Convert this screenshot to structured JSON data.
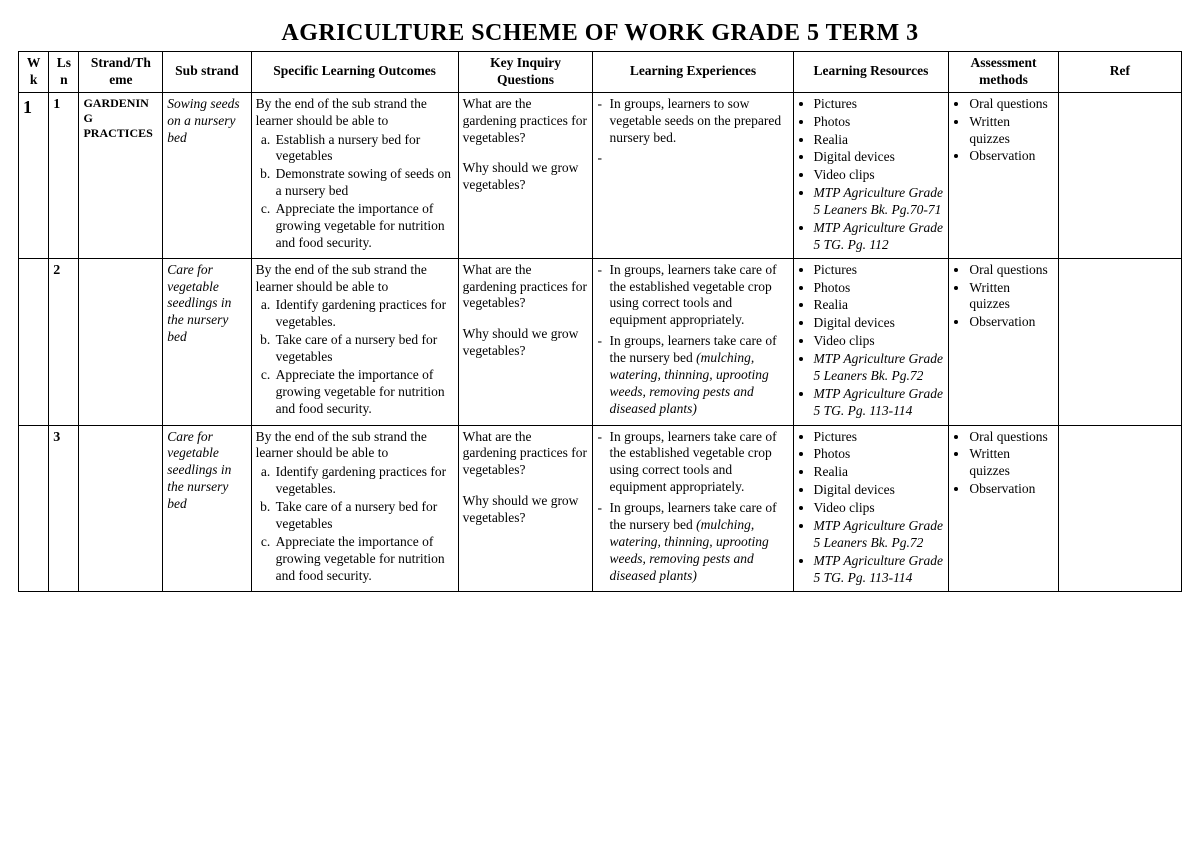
{
  "title": "AGRICULTURE SCHEME OF WORK GRADE 5 TERM 3",
  "headers": {
    "wk": "W k",
    "lsn": "Ls n",
    "strand": "Strand/Th eme",
    "substrand": "Sub strand",
    "slo": "Specific Learning Outcomes",
    "kiq": "Key Inquiry Questions",
    "lex": "Learning Experiences",
    "res": "Learning Resources",
    "asm": "Assessment methods",
    "ref": "Ref"
  },
  "rows": [
    {
      "wk": "1",
      "lsn": "1",
      "strand": "GARDENIN G PRACTICES",
      "substrand": "Sowing seeds on a nursery bed",
      "slo_intro": "By the end of the sub strand the learner should be able to",
      "slo_items": [
        "Establish a nursery bed for vegetables",
        "Demonstrate sowing of seeds on a nursery bed",
        "Appreciate the importance of growing vegetable for nutrition and food security."
      ],
      "kiq": [
        "What are the gardening practices for vegetables?",
        "Why should we grow vegetables?"
      ],
      "lex": [
        {
          "text": "In groups, learners to sow vegetable seeds on the prepared nursery bed."
        },
        {
          "text": ""
        }
      ],
      "res": [
        {
          "text": "Pictures"
        },
        {
          "text": "Photos"
        },
        {
          "text": "Realia"
        },
        {
          "text": "Digital devices"
        },
        {
          "text": "Video clips"
        },
        {
          "text": "MTP Agriculture Grade 5 Leaners Bk. Pg.70-71",
          "italic": true
        },
        {
          "text": "MTP Agriculture Grade 5 TG. Pg. 112",
          "italic": true
        }
      ],
      "asm": [
        "Oral questions",
        "Written quizzes",
        "Observation"
      ]
    },
    {
      "wk": "",
      "lsn": "2",
      "strand": "",
      "substrand": "Care for vegetable seedlings in the nursery bed",
      "slo_intro": "By the end of the sub strand the learner should be able to",
      "slo_items": [
        "Identify gardening practices for vegetables.",
        "Take care of a nursery bed for vegetables",
        "Appreciate the importance of growing vegetable for nutrition and food security."
      ],
      "kiq": [
        "What are the gardening practices for vegetables?",
        "Why should we grow vegetables?"
      ],
      "lex": [
        {
          "text": "In groups, learners take care of the established vegetable crop using correct tools and equipment appropriately."
        },
        {
          "text": "In groups, learners take care of the nursery bed ",
          "italic_tail": "(mulching, watering, thinning, uprooting weeds, removing pests and diseased plants)"
        }
      ],
      "res": [
        {
          "text": "Pictures"
        },
        {
          "text": "Photos"
        },
        {
          "text": "Realia"
        },
        {
          "text": "Digital devices"
        },
        {
          "text": "Video clips"
        },
        {
          "text": "MTP Agriculture Grade 5 Leaners Bk. Pg.72",
          "italic": true
        },
        {
          "text": "MTP Agriculture Grade 5 TG. Pg. 113-114",
          "italic": true
        }
      ],
      "asm": [
        "Oral questions",
        "Written quizzes",
        "Observation"
      ]
    },
    {
      "wk": "",
      "lsn": "3",
      "strand": "",
      "substrand": "Care for vegetable seedlings in the nursery bed",
      "slo_intro": "By the end of the sub strand the learner should be able to",
      "slo_items": [
        "Identify gardening practices for vegetables.",
        "Take care of a nursery bed for vegetables",
        "Appreciate the importance of growing vegetable for nutrition and food security."
      ],
      "kiq": [
        "What are the gardening practices for vegetables?",
        "Why should we grow vegetables?"
      ],
      "lex": [
        {
          "text": "In groups, learners take care of the established vegetable crop using correct tools and equipment appropriately."
        },
        {
          "text": "In groups, learners take care of the nursery bed ",
          "italic_tail": "(mulching, watering, thinning, uprooting weeds, removing pests and diseased plants)"
        }
      ],
      "res": [
        {
          "text": "Pictures"
        },
        {
          "text": "Photos"
        },
        {
          "text": "Realia"
        },
        {
          "text": "Digital devices"
        },
        {
          "text": "Video clips"
        },
        {
          "text": "MTP Agriculture Grade 5 Leaners Bk. Pg.72",
          "italic": true
        },
        {
          "text": "MTP Agriculture Grade 5 TG. Pg. 113-114",
          "italic": true
        }
      ],
      "asm": [
        "Oral questions",
        "Written quizzes",
        "Observation"
      ]
    }
  ]
}
